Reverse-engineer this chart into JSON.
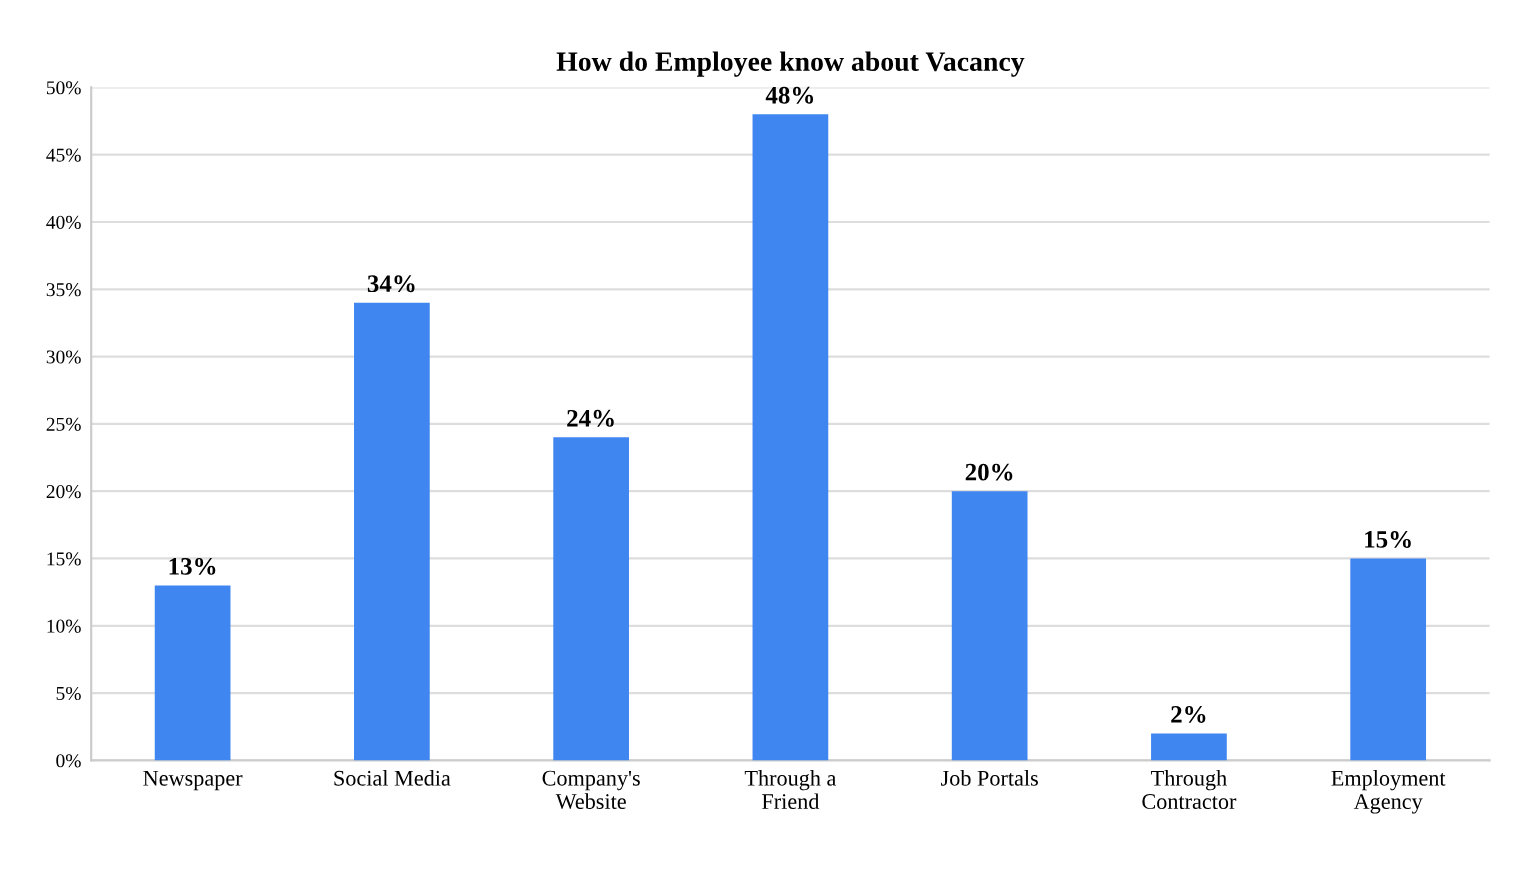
{
  "chart_data": {
    "type": "bar",
    "title": "How do Employee know about Vacancy",
    "categories": [
      "Newspaper",
      "Social Media",
      "Company's\nWebsite",
      "Through a\nFriend",
      "Job Portals",
      "Through\nContractor",
      "Employment\nAgency"
    ],
    "values": [
      13,
      34,
      24,
      48,
      20,
      2,
      15
    ],
    "value_labels": [
      "13%",
      "34%",
      "24%",
      "48%",
      "20%",
      "2%",
      "15%"
    ],
    "color": "#3f86f0",
    "ylim": [
      0,
      50
    ],
    "yticks": [
      {
        "value": 0,
        "label": "0%"
      },
      {
        "value": 5,
        "label": "5%"
      },
      {
        "value": 10,
        "label": "10%"
      },
      {
        "value": 15,
        "label": "15%"
      },
      {
        "value": 20,
        "label": "20%"
      },
      {
        "value": 25,
        "label": "25%"
      },
      {
        "value": 30,
        "label": "30%"
      },
      {
        "value": 35,
        "label": "35%"
      },
      {
        "value": 40,
        "label": "40%"
      },
      {
        "value": 45,
        "label": "45%"
      },
      {
        "value": 50,
        "label": "50%"
      }
    ],
    "grid": "y"
  }
}
